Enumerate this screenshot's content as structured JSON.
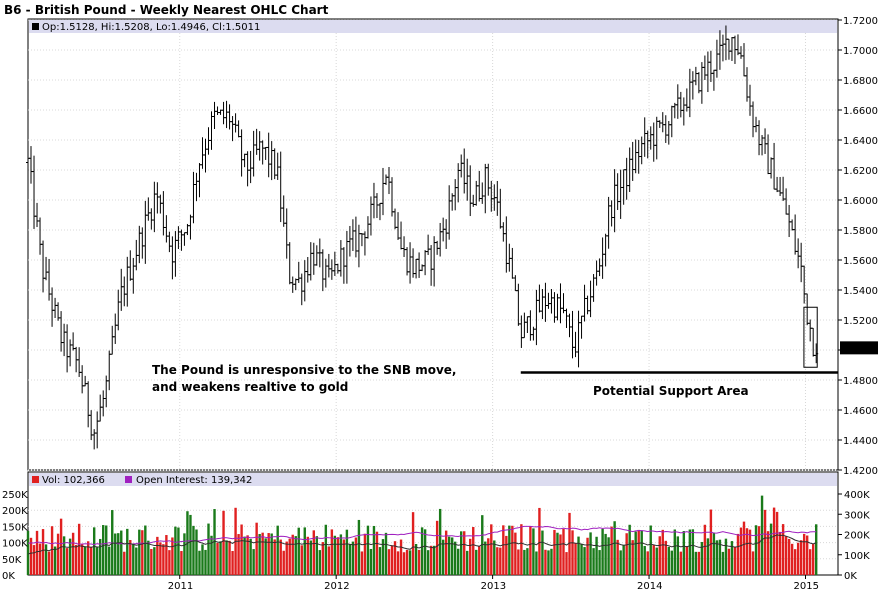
{
  "chart_data": {
    "type": "ohlc",
    "title": "B6 - British Pound - Weekly Nearest OHLC Chart",
    "info_line": "Op:1.5128, Hi:1.5208, Lo:1.4946, Cl:1.5011",
    "price_axis": {
      "ylim": [
        1.42,
        1.72
      ],
      "ticks": [
        "1.4200",
        "1.4400",
        "1.4600",
        "1.4800",
        "1.5000",
        "1.5200",
        "1.5400",
        "1.5600",
        "1.5800",
        "1.6000",
        "1.6200",
        "1.6400",
        "1.6600",
        "1.6800",
        "1.7000",
        "1.7200"
      ],
      "last_price_label": "1.5011",
      "last_price": 1.5011
    },
    "x_axis": {
      "start_year": 2010.03,
      "end_year": 2015.08,
      "ticks": [
        "2011",
        "2012",
        "2013",
        "2014",
        "2015"
      ]
    },
    "price_anchors": [
      [
        2010.03,
        1.625
      ],
      [
        2010.12,
        1.555
      ],
      [
        2010.25,
        1.505
      ],
      [
        2010.35,
        1.49
      ],
      [
        2010.45,
        1.445
      ],
      [
        2010.52,
        1.47
      ],
      [
        2010.62,
        1.535
      ],
      [
        2010.75,
        1.575
      ],
      [
        2010.85,
        1.605
      ],
      [
        2010.95,
        1.565
      ],
      [
        2011.05,
        1.585
      ],
      [
        2011.12,
        1.625
      ],
      [
        2011.22,
        1.655
      ],
      [
        2011.32,
        1.655
      ],
      [
        2011.42,
        1.62
      ],
      [
        2011.52,
        1.635
      ],
      [
        2011.62,
        1.62
      ],
      [
        2011.7,
        1.55
      ],
      [
        2011.77,
        1.545
      ],
      [
        2011.85,
        1.565
      ],
      [
        2011.95,
        1.545
      ],
      [
        2012.05,
        1.565
      ],
      [
        2012.15,
        1.575
      ],
      [
        2012.25,
        1.595
      ],
      [
        2012.32,
        1.62
      ],
      [
        2012.42,
        1.565
      ],
      [
        2012.5,
        1.555
      ],
      [
        2012.6,
        1.56
      ],
      [
        2012.7,
        1.585
      ],
      [
        2012.78,
        1.62
      ],
      [
        2012.88,
        1.6
      ],
      [
        2012.95,
        1.615
      ],
      [
        2013.02,
        1.6
      ],
      [
        2013.1,
        1.56
      ],
      [
        2013.18,
        1.51
      ],
      [
        2013.25,
        1.52
      ],
      [
        2013.35,
        1.535
      ],
      [
        2013.45,
        1.525
      ],
      [
        2013.52,
        1.5
      ],
      [
        2013.6,
        1.53
      ],
      [
        2013.68,
        1.555
      ],
      [
        2013.75,
        1.595
      ],
      [
        2013.85,
        1.615
      ],
      [
        2013.95,
        1.635
      ],
      [
        2014.05,
        1.645
      ],
      [
        2014.15,
        1.655
      ],
      [
        2014.25,
        1.67
      ],
      [
        2014.35,
        1.685
      ],
      [
        2014.45,
        1.695
      ],
      [
        2014.52,
        1.71
      ],
      [
        2014.58,
        1.7
      ],
      [
        2014.65,
        1.66
      ],
      [
        2014.72,
        1.635
      ],
      [
        2014.8,
        1.615
      ],
      [
        2014.88,
        1.59
      ],
      [
        2014.93,
        1.57
      ],
      [
        2014.97,
        1.555
      ],
      [
        2015.0,
        1.53
      ],
      [
        2015.05,
        1.505
      ]
    ],
    "volume_axis": {
      "ylim": [
        0,
        250000
      ],
      "ticks": [
        "0K",
        "50K",
        "100K",
        "150K",
        "200K",
        "250K"
      ],
      "legend_vol": "Vol: 102,366",
      "legend_oi": "Open Interest: 139,342"
    },
    "open_interest_axis": {
      "ticks": [
        "0K",
        "100K",
        "200K",
        "300K",
        "400K"
      ]
    },
    "support_level": 1.485,
    "annotations": [
      {
        "text": "The Pound is unresponsive to the SNB move,"
      },
      {
        "text": "and weakens realtive to gold"
      },
      {
        "text": "Potential Support Area"
      }
    ],
    "colors": {
      "up_bar": "#1a7a1a",
      "down_bar": "#e02020",
      "oi_line": "#a020c0",
      "avg_line": "#303030",
      "legend_bg": "#dcdcf0",
      "price_bar": "#000000"
    }
  }
}
